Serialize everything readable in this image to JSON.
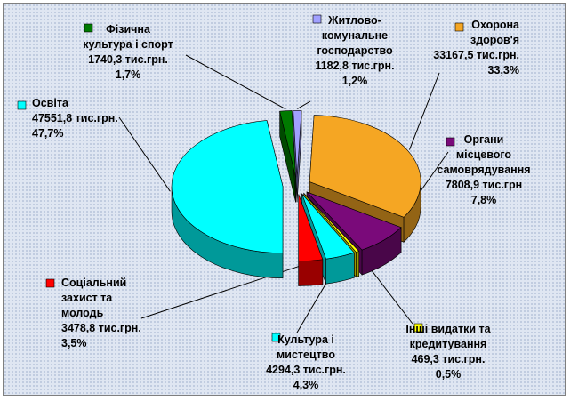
{
  "chart_data": {
    "type": "pie",
    "title": "",
    "legend_position": "labels around pie",
    "series": [
      {
        "key": "okhorona",
        "label_lines": [
          "Охорона",
          "здоров'я",
          "33167,5 тис.грн.",
          "33,3%"
        ],
        "value": 33167.5,
        "percent": 33.3,
        "color": "#f5a623"
      },
      {
        "key": "organy",
        "label_lines": [
          "Органи",
          "місцевого",
          "самоврядування",
          "7808,9 тис.грн",
          "7,8%"
        ],
        "value": 7808.9,
        "percent": 7.8,
        "color": "#7a0a7a"
      },
      {
        "key": "inshi",
        "label_lines": [
          "Інші видатки та",
          "кредитування",
          "469,3 тис.грн.",
          "0,5%"
        ],
        "value": 469.3,
        "percent": 0.5,
        "color": "#ffff00"
      },
      {
        "key": "kultura",
        "label_lines": [
          "Культура і",
          "мистецтво",
          "4294,3 тис.грн.",
          "4,3%"
        ],
        "value": 4294.3,
        "percent": 4.3,
        "color": "#00ffff"
      },
      {
        "key": "sotsialnyi",
        "label_lines": [
          "Соціальний",
          "захист та",
          "молодь",
          "3478,8 тис.грн.",
          "3,5%"
        ],
        "value": 3478.8,
        "percent": 3.5,
        "color": "#ff0000"
      },
      {
        "key": "osvita",
        "label_lines": [
          "Освіта",
          "47551,8 тис.грн.",
          "47,7%"
        ],
        "value": 47551.8,
        "percent": 47.7,
        "color": "#00ffff"
      },
      {
        "key": "fizychna",
        "label_lines": [
          "Фізична",
          "культура і спорт",
          "1740,3 тис.грн.",
          "1,7%"
        ],
        "value": 1740.3,
        "percent": 1.7,
        "color": "#007a00"
      },
      {
        "key": "zhytlovo",
        "label_lines": [
          "Житлово-",
          "комунальне",
          "господарство",
          "1182,8 тис.грн.",
          "1,2%"
        ],
        "value": 1182.8,
        "percent": 1.2,
        "color": "#a0a0ff"
      }
    ]
  }
}
